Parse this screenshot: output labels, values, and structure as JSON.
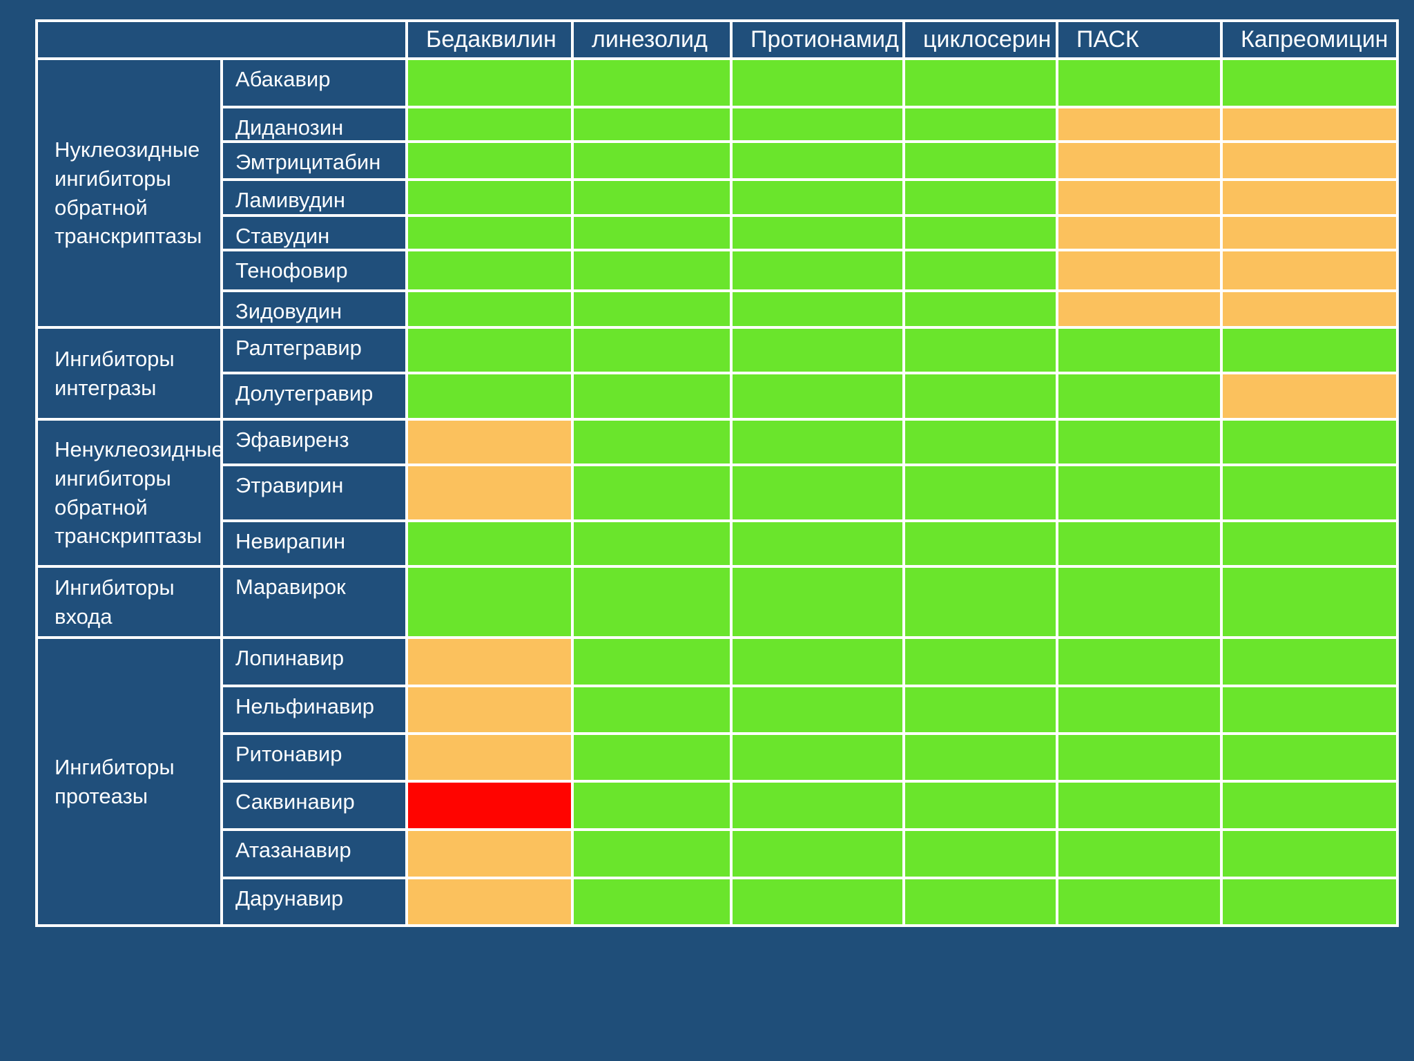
{
  "palette": {
    "background": "#1F4E79",
    "cell_blue": "#204F7B",
    "grid_white": "#FFFFFF",
    "green": "#6AE52C",
    "orange": "#FBC15D",
    "red": "#FF0400",
    "text": "#FDFEFF"
  },
  "header": {
    "corner_label": "",
    "columns": [
      "Бедаквилин",
      "линезолид",
      "Протионамид",
      "циклосерин",
      "ПАСК",
      "Капреомицин"
    ]
  },
  "groups": [
    {
      "label": "Нуклеозидные ингибиторы обратной транскриптазы",
      "drugs": [
        {
          "name": "Абакавир",
          "cells": [
            "green",
            "green",
            "green",
            "green",
            "green",
            "green"
          ]
        },
        {
          "name": "Диданозин",
          "cells": [
            "green",
            "green",
            "green",
            "green",
            "orange",
            "orange"
          ]
        },
        {
          "name": "Эмтрицитабин",
          "cells": [
            "green",
            "green",
            "green",
            "green",
            "orange",
            "orange"
          ]
        },
        {
          "name": "Ламивудин",
          "cells": [
            "green",
            "green",
            "green",
            "green",
            "orange",
            "orange"
          ]
        },
        {
          "name": "Ставудин",
          "cells": [
            "green",
            "green",
            "green",
            "green",
            "orange",
            "orange"
          ]
        },
        {
          "name": "Тенофовир",
          "cells": [
            "green",
            "green",
            "green",
            "green",
            "orange",
            "orange"
          ]
        },
        {
          "name": "Зидовудин",
          "cells": [
            "green",
            "green",
            "green",
            "green",
            "orange",
            "orange"
          ]
        }
      ]
    },
    {
      "label": "Ингибиторы интегразы",
      "drugs": [
        {
          "name": "Ралтегравир",
          "cells": [
            "green",
            "green",
            "green",
            "green",
            "green",
            "green"
          ]
        },
        {
          "name": "Долутегравир",
          "cells": [
            "green",
            "green",
            "green",
            "green",
            "green",
            "orange"
          ]
        }
      ]
    },
    {
      "label": "Ненуклеозидные ингибиторы обратной транскриптазы",
      "drugs": [
        {
          "name": "Эфавиренз",
          "cells": [
            "orange",
            "green",
            "green",
            "green",
            "green",
            "green"
          ]
        },
        {
          "name": "Этравирин",
          "cells": [
            "orange",
            "green",
            "green",
            "green",
            "green",
            "green"
          ]
        },
        {
          "name": "Невирапин",
          "cells": [
            "green",
            "green",
            "green",
            "green",
            "green",
            "green"
          ]
        }
      ]
    },
    {
      "label": "Ингибиторы входа",
      "drugs": [
        {
          "name": "Маравирок",
          "cells": [
            "green",
            "green",
            "green",
            "green",
            "green",
            "green"
          ]
        }
      ]
    },
    {
      "label": "Ингибиторы протеазы",
      "drugs": [
        {
          "name": "Лопинавир",
          "cells": [
            "orange",
            "green",
            "green",
            "green",
            "green",
            "green"
          ]
        },
        {
          "name": "Нельфинавир",
          "cells": [
            "orange",
            "green",
            "green",
            "green",
            "green",
            "green"
          ]
        },
        {
          "name": "Ритонавир",
          "cells": [
            "orange",
            "green",
            "green",
            "green",
            "green",
            "green"
          ]
        },
        {
          "name": "Саквинавир",
          "cells": [
            "red",
            "green",
            "green",
            "green",
            "green",
            "green"
          ]
        },
        {
          "name": "Атазанавир",
          "cells": [
            "orange",
            "green",
            "green",
            "green",
            "green",
            "green"
          ]
        },
        {
          "name": "Дарунавир",
          "cells": [
            "orange",
            "green",
            "green",
            "green",
            "green",
            "green"
          ]
        }
      ]
    }
  ],
  "chart_data": {
    "type": "heatmap",
    "title": "",
    "x_categories": [
      "Бедаквилин",
      "линезолид",
      "Протионамид",
      "циклосерин",
      "ПАСК",
      "Капреомицин"
    ],
    "y_categories": [
      "Абакавир",
      "Диданозин",
      "Эмтрицитабин",
      "Ламивудин",
      "Ставудин",
      "Тенофовир",
      "Зидовудин",
      "Ралтегравир",
      "Долутегравир",
      "Эфавиренз",
      "Этравирин",
      "Невирапин",
      "Маравирок",
      "Лопинавир",
      "Нельфинавир",
      "Ритонавир",
      "Саквинавир",
      "Атазанавир",
      "Дарунавир"
    ],
    "y_group_labels": [
      {
        "label": "Нуклеозидные ингибиторы обратной транскриптазы",
        "rows": [
          "Абакавир",
          "Диданозин",
          "Эмтрицитабин",
          "Ламивудин",
          "Ставудин",
          "Тенофовир",
          "Зидовудин"
        ]
      },
      {
        "label": "Ингибиторы интегразы",
        "rows": [
          "Ралтегравир",
          "Долутегравир"
        ]
      },
      {
        "label": "Ненуклеозидные ингибиторы обратной транскриптазы",
        "rows": [
          "Эфавиренз",
          "Этравирин",
          "Невирапин"
        ]
      },
      {
        "label": "Ингибиторы входа",
        "rows": [
          "Маравирок"
        ]
      },
      {
        "label": "Ингибиторы протеазы",
        "rows": [
          "Лопинавир",
          "Нельфинавир",
          "Ритонавир",
          "Саквинавир",
          "Атазанавир",
          "Дарунавир"
        ]
      }
    ],
    "values": [
      [
        "green",
        "green",
        "green",
        "green",
        "green",
        "green"
      ],
      [
        "green",
        "green",
        "green",
        "green",
        "orange",
        "orange"
      ],
      [
        "green",
        "green",
        "green",
        "green",
        "orange",
        "orange"
      ],
      [
        "green",
        "green",
        "green",
        "green",
        "orange",
        "orange"
      ],
      [
        "green",
        "green",
        "green",
        "green",
        "orange",
        "orange"
      ],
      [
        "green",
        "green",
        "green",
        "green",
        "orange",
        "orange"
      ],
      [
        "green",
        "green",
        "green",
        "green",
        "orange",
        "orange"
      ],
      [
        "green",
        "green",
        "green",
        "green",
        "green",
        "green"
      ],
      [
        "green",
        "green",
        "green",
        "green",
        "green",
        "orange"
      ],
      [
        "orange",
        "green",
        "green",
        "green",
        "green",
        "green"
      ],
      [
        "orange",
        "green",
        "green",
        "green",
        "green",
        "green"
      ],
      [
        "green",
        "green",
        "green",
        "green",
        "green",
        "green"
      ],
      [
        "green",
        "green",
        "green",
        "green",
        "green",
        "green"
      ],
      [
        "orange",
        "green",
        "green",
        "green",
        "green",
        "green"
      ],
      [
        "orange",
        "green",
        "green",
        "green",
        "green",
        "green"
      ],
      [
        "orange",
        "green",
        "green",
        "green",
        "green",
        "green"
      ],
      [
        "red",
        "green",
        "green",
        "green",
        "green",
        "green"
      ],
      [
        "orange",
        "green",
        "green",
        "green",
        "green",
        "green"
      ],
      [
        "orange",
        "green",
        "green",
        "green",
        "green",
        "green"
      ]
    ],
    "color_map": {
      "green": "#6AE52C",
      "orange": "#FBC15D",
      "red": "#FF0400"
    },
    "grid": "white 4px gridlines",
    "legend_position": "none"
  }
}
